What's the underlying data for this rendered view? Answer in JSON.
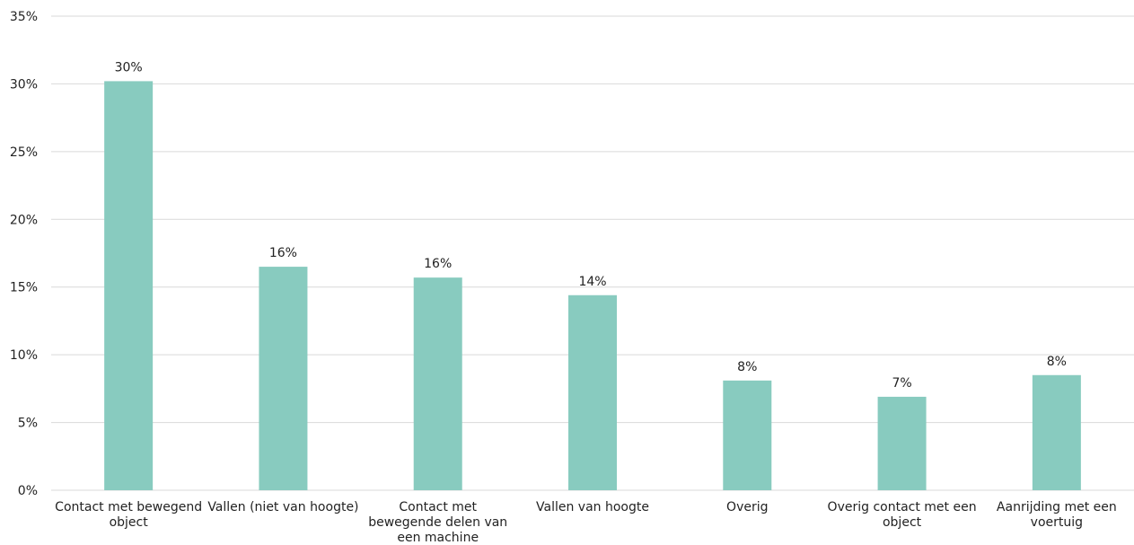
{
  "chart_data": {
    "type": "bar",
    "categories": [
      [
        "Contact met bewegend",
        "object"
      ],
      [
        "Vallen (niet van hoogte)"
      ],
      [
        "Contact met",
        "bewegende delen van",
        "een machine"
      ],
      [
        "Vallen van hoogte"
      ],
      [
        "Overig"
      ],
      [
        "Overig contact met een",
        "object"
      ],
      [
        "Aanrijding met een",
        "voertuig"
      ]
    ],
    "values": [
      30.2,
      16.5,
      15.7,
      14.4,
      8.1,
      6.9,
      8.5
    ],
    "data_labels": [
      "30%",
      "16%",
      "16%",
      "14%",
      "8%",
      "7%",
      "8%"
    ],
    "y_ticks": [
      "0%",
      "5%",
      "10%",
      "15%",
      "20%",
      "25%",
      "30%",
      "35%"
    ],
    "ylim": [
      0,
      35
    ],
    "grid": true,
    "bar_color": "#88cbbf",
    "gridline_color": "#d9d9d9"
  }
}
